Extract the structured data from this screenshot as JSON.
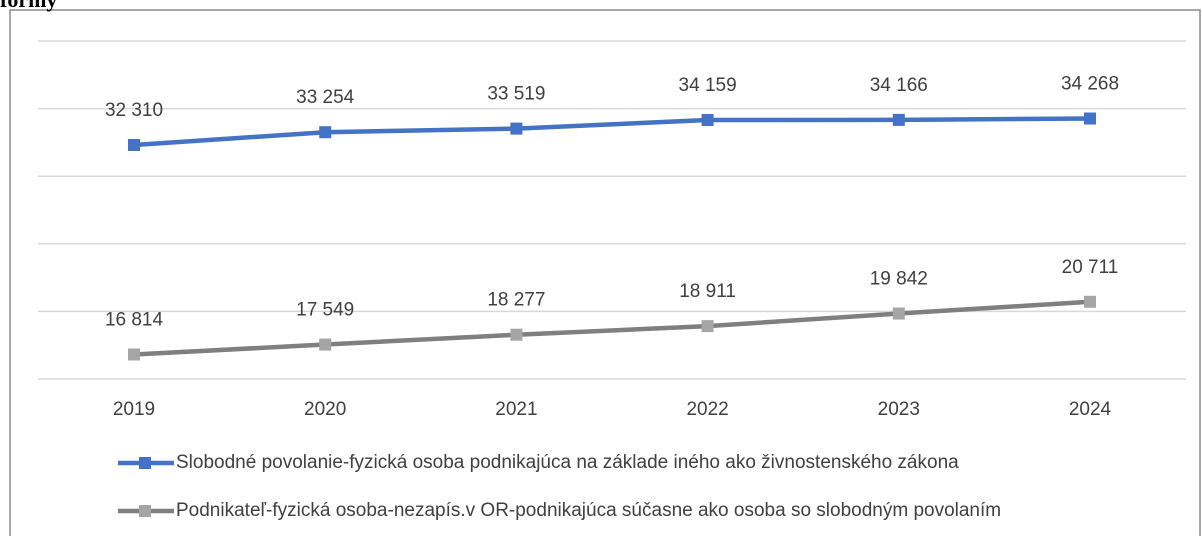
{
  "chart_data": {
    "type": "line",
    "title": "formy",
    "categories": [
      "2019",
      "2020",
      "2021",
      "2022",
      "2023",
      "2024"
    ],
    "series": [
      {
        "name": "Slobodné povolanie-fyzická osoba podnikajúca na základe iného ako živnostenského zákona",
        "color": "#4472c4",
        "values": [
          32310,
          33254,
          33519,
          34159,
          34166,
          34268
        ],
        "value_labels": [
          "32 310",
          "33 254",
          "33 519",
          "34 159",
          "34 166",
          "34 268"
        ]
      },
      {
        "name": "Podnikateľ-fyzická osoba-nezapís.v OR-podnikajúca súčasne ako osoba so slobodným povolaním",
        "color": "#7f7f7f",
        "marker_color": "#a5a5a5",
        "values": [
          16814,
          17549,
          18277,
          18911,
          19842,
          20711
        ],
        "value_labels": [
          "16 814",
          "17 549",
          "18 277",
          "18 911",
          "19 842",
          "20 711"
        ]
      }
    ],
    "ylim": [
      15000,
      40000
    ],
    "yticks": [
      15000,
      20000,
      25000,
      30000,
      35000,
      40000
    ],
    "grid": true
  }
}
